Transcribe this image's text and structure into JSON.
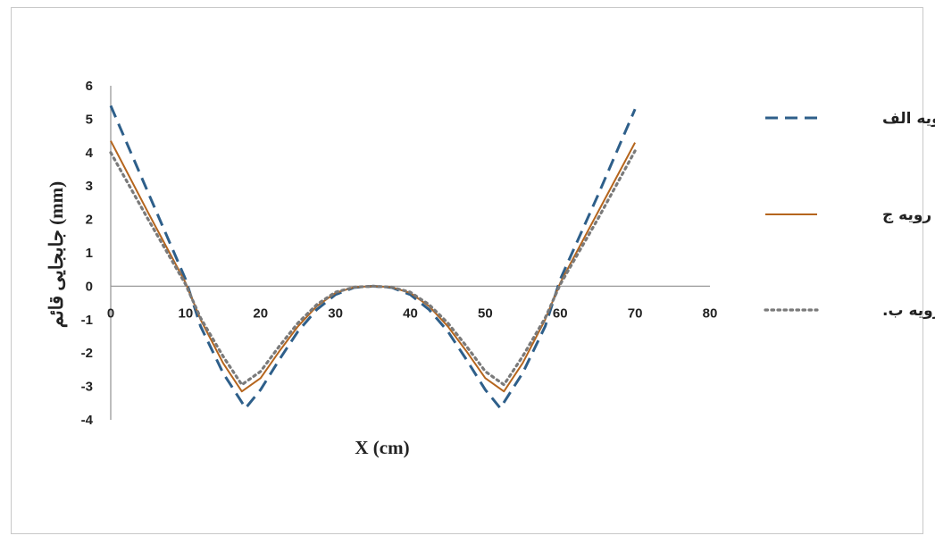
{
  "chart_data": {
    "type": "line",
    "xlabel": "X (cm)",
    "ylabel": "جابجایی قائم (mm)",
    "xlim": [
      0,
      80
    ],
    "ylim": [
      -4,
      6
    ],
    "x_ticks": [
      0,
      10,
      20,
      30,
      40,
      50,
      60,
      70,
      80
    ],
    "y_ticks": [
      6,
      5,
      4,
      3,
      2,
      1,
      0,
      -1,
      -2,
      -3,
      -4
    ],
    "legend_position": "right",
    "grid": false,
    "series": [
      {
        "name": "رویه الف",
        "style": "dashed",
        "color": "#2e5f8a",
        "x": [
          0,
          5,
          10,
          12,
          15,
          18,
          20,
          22.5,
          25,
          27.5,
          30,
          32.5,
          35,
          37.5,
          40,
          42.5,
          45,
          47.5,
          50,
          52,
          55,
          58,
          60,
          65,
          70
        ],
        "y": [
          5.4,
          2.8,
          0.2,
          -1.2,
          -2.6,
          -3.65,
          -3.1,
          -2.2,
          -1.35,
          -0.7,
          -0.25,
          -0.04,
          0,
          -0.04,
          -0.25,
          -0.7,
          -1.35,
          -2.2,
          -3.1,
          -3.65,
          -2.6,
          -1.2,
          0.2,
          2.7,
          5.3
        ]
      },
      {
        "name": "رویه ج",
        "style": "solid",
        "color": "#b5651d",
        "x": [
          0,
          5,
          10,
          12,
          15,
          17.5,
          20,
          22.5,
          25,
          27.5,
          30,
          32.5,
          35,
          37.5,
          40,
          42.5,
          45,
          47.5,
          50,
          52.5,
          55,
          58,
          60,
          65,
          70
        ],
        "y": [
          4.35,
          2.2,
          0.1,
          -1.0,
          -2.3,
          -3.15,
          -2.75,
          -1.95,
          -1.2,
          -0.6,
          -0.2,
          -0.03,
          0,
          -0.03,
          -0.2,
          -0.6,
          -1.2,
          -1.95,
          -2.75,
          -3.15,
          -2.3,
          -1.0,
          0.1,
          2.2,
          4.3
        ]
      },
      {
        "name": "رویه ب.",
        "style": "dotted",
        "color": "#7a7a7a",
        "x": [
          0,
          5,
          10,
          12,
          15,
          17.5,
          20,
          22.5,
          25,
          27.5,
          30,
          32.5,
          35,
          37.5,
          40,
          42.5,
          45,
          47.5,
          50,
          52.5,
          55,
          58,
          60,
          65,
          70
        ],
        "y": [
          4.0,
          2.0,
          0.05,
          -0.95,
          -2.1,
          -2.95,
          -2.55,
          -1.8,
          -1.1,
          -0.55,
          -0.18,
          -0.03,
          0,
          -0.03,
          -0.18,
          -0.55,
          -1.1,
          -1.8,
          -2.55,
          -2.95,
          -2.1,
          -0.95,
          0.05,
          2.0,
          4.05
        ]
      }
    ]
  }
}
